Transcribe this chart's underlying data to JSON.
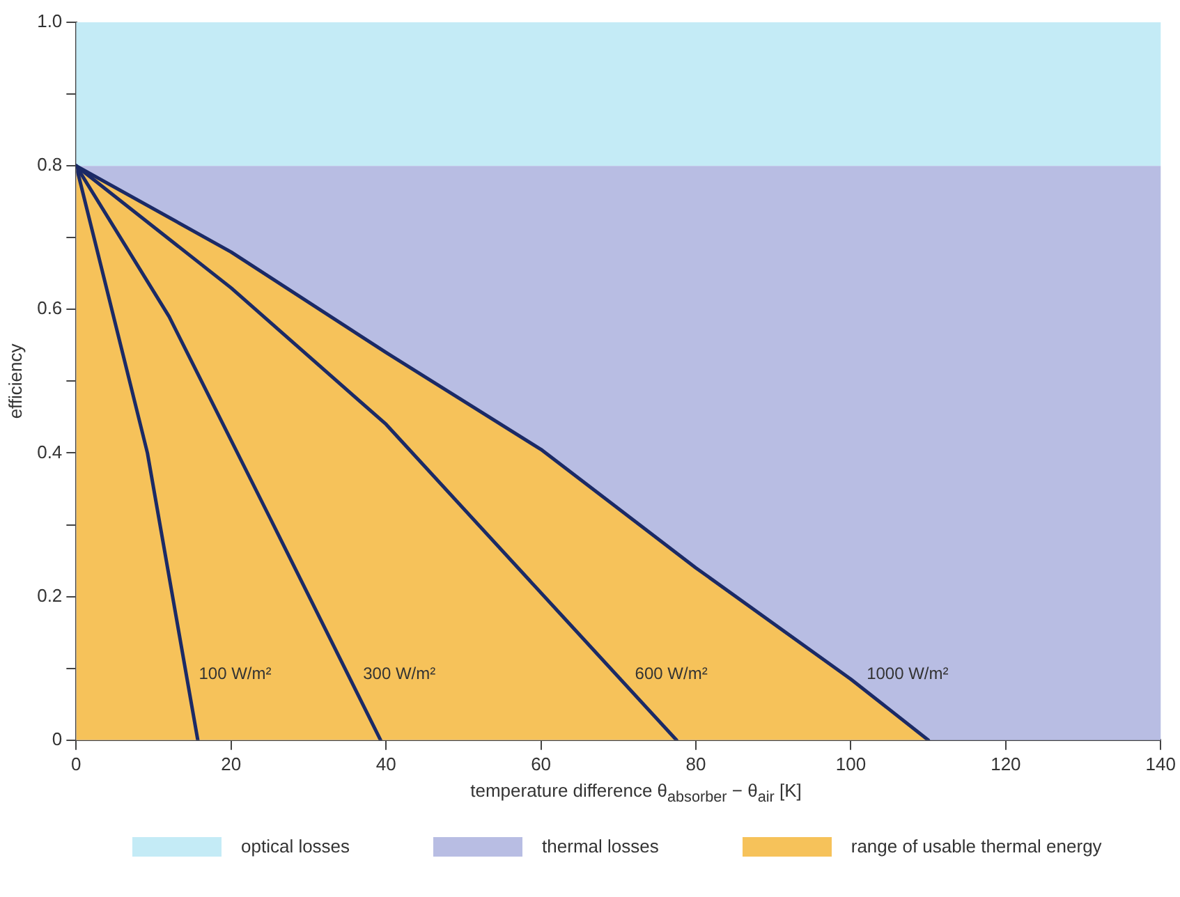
{
  "chart_data": {
    "type": "line",
    "xlabel": "temperature difference θ$_{absorber}$ − θ$_{air}$ [K]",
    "ylabel": "efficiency",
    "xlim": [
      0,
      140
    ],
    "xticks": [
      0,
      20,
      40,
      60,
      80,
      100,
      120,
      140
    ],
    "ylim": [
      0,
      1
    ],
    "yticks": [
      0,
      {
        "value": 0.1,
        "label": null
      },
      0.2,
      {
        "value": 0.3,
        "label": null
      },
      0.4,
      {
        "value": 0.5,
        "label": null
      },
      0.6,
      {
        "value": 0.7,
        "label": null
      },
      0.8,
      {
        "value": 0.9,
        "label": null
      },
      {
        "value": 1,
        "label": "1.0"
      }
    ],
    "grid": false,
    "legend": "bottom",
    "marker": "none",
    "line_style": "solid",
    "bands": [
      {
        "axis": "y",
        "from": 0.8,
        "to": 1,
        "label": "optical losses",
        "color": "#c4ebf6"
      },
      {
        "axis": "y",
        "from": 0,
        "to": 0.8,
        "label": "thermal losses",
        "color": "#b8bde3"
      }
    ],
    "series": [
      {
        "color": "#1b2a66",
        "x": [
          0,
          9.2,
          15.7
        ],
        "values": [
          0.8,
          0.4,
          0
        ]
      },
      {
        "color": "#1b2a66",
        "x": [
          0,
          12,
          25,
          39.3
        ],
        "values": [
          0.8,
          0.59,
          0.31,
          0
        ]
      },
      {
        "color": "#1b2a66",
        "x": [
          0,
          20,
          40,
          63,
          77.5
        ],
        "values": [
          0.8,
          0.63,
          0.44,
          0.17,
          0
        ]
      },
      {
        "type": "area",
        "name": "range of usable thermal energy",
        "color": "#f6c25a",
        "x": [
          0,
          20,
          40,
          60,
          80,
          100,
          110
        ],
        "values": [
          0.8,
          0.68,
          0.54,
          0.405,
          0.24,
          0.085,
          0
        ]
      }
    ],
    "annotations": [
      {
        "text": "100 W/m²",
        "x": 14.4,
        "y": 0.08
      },
      {
        "text": "300 W/m²",
        "x": 35.6,
        "y": 0.08
      },
      {
        "text": "600 W/m²",
        "x": 70.7,
        "y": 0.08
      },
      {
        "text": "1000 W/m²",
        "x": 100.6,
        "y": 0.08
      }
    ]
  }
}
